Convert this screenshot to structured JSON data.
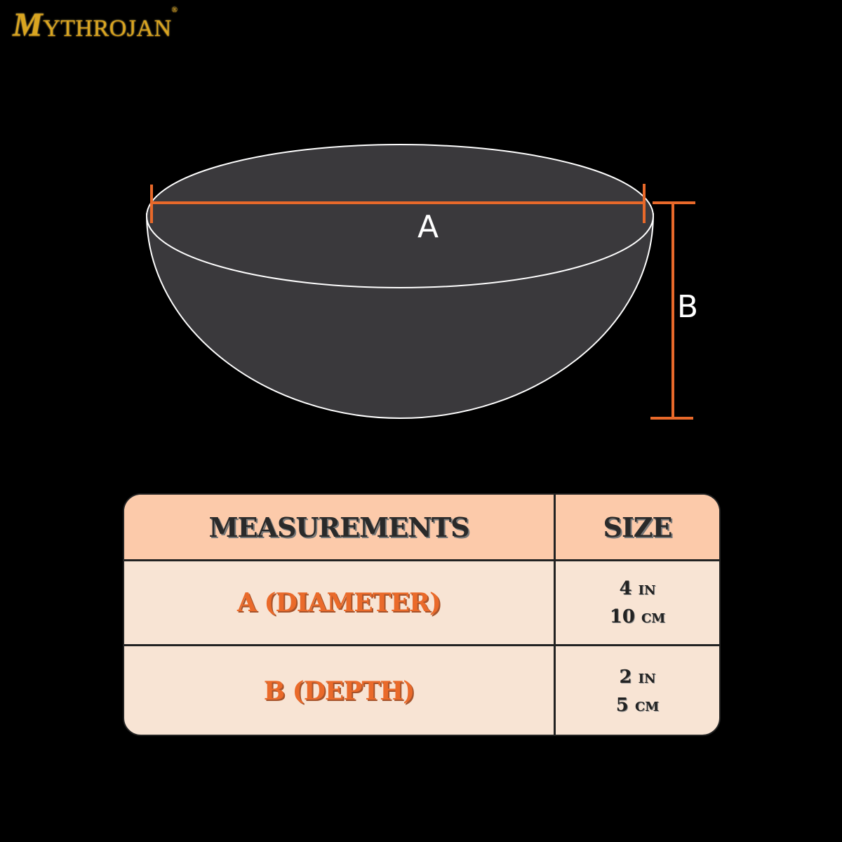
{
  "brand": {
    "logo_first": "M",
    "logo_rest": "YTHROJAN",
    "registered": "®"
  },
  "diagram": {
    "label_a": "A",
    "label_b": "B",
    "accent": "#e8692a",
    "bowl_fill": "#3a393c",
    "outline": "#ffffff"
  },
  "table": {
    "headers": [
      "MEASUREMENTS",
      "SIZE"
    ],
    "rows": [
      {
        "label": "A (DIAMETER)",
        "sizes": [
          "4 in",
          "10 cm"
        ]
      },
      {
        "label": "B (DEPTH)",
        "sizes": [
          "2 in",
          "5 cm"
        ]
      }
    ],
    "header_bg": "#fccaaa",
    "body_bg": "#f8e4d4"
  }
}
